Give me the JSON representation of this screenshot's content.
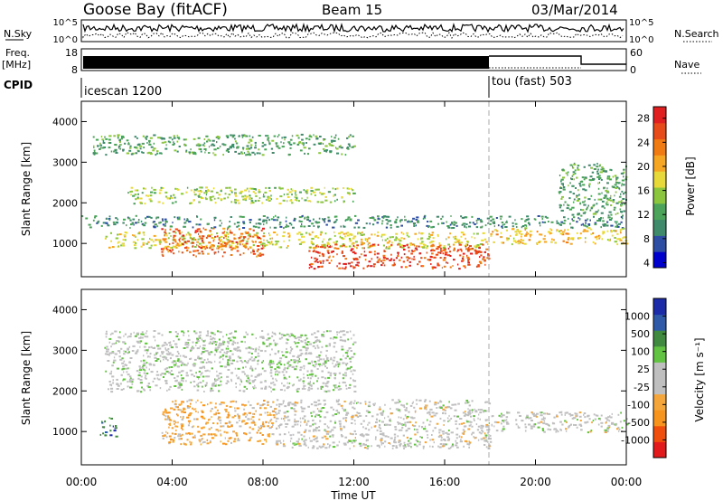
{
  "header": {
    "station": "Goose Bay (fitACF)",
    "beam": "Beam 15",
    "date": "03/Mar/2014"
  },
  "params": {
    "nsky_label": "N.Sky",
    "nsky_ticks": [
      "10^5",
      "10^0"
    ],
    "nsearch_label": "N.Search",
    "nsearch_ticks": [
      "10^5",
      "10^0"
    ],
    "freq_label_1": "Freq.",
    "freq_label_2": "[MHz]",
    "freq_ticks": [
      "18",
      "8"
    ],
    "nave_label": "Nave",
    "nave_ticks": [
      "60",
      "0"
    ],
    "cpid_label": "CPID",
    "cpid_segments": [
      {
        "name": "icescan 1200",
        "start_hour": 0
      },
      {
        "name": "tou (fast) 503",
        "start_hour": 18
      }
    ]
  },
  "colors": {
    "power_scale": [
      "#0000cc",
      "#2e4ea3",
      "#3f8a6b",
      "#4ca35a",
      "#8cc63f",
      "#e8d93a",
      "#f5a623",
      "#f07b13",
      "#e84b1a",
      "#e02020"
    ],
    "velocity_scale": [
      "#e31a1c",
      "#f04e0c",
      "#f7941d",
      "#f4a63a",
      "#bfbfbf",
      "#bfbfbf",
      "#62c241",
      "#3f8a3f",
      "#2e5aa8",
      "#1c2ba8"
    ]
  },
  "chart_data": [
    {
      "type": "heatmap",
      "panel": "power",
      "ylabel": "Slant Range [km]",
      "yticks": [
        "4000",
        "3000",
        "2000",
        "1000"
      ],
      "ylim": [
        180,
        4500
      ],
      "xlim_hours": [
        0,
        24
      ],
      "colorbar": {
        "label": "Power [dB]",
        "ticks": [
          "28",
          "24",
          "20",
          "16",
          "12",
          "8",
          "4"
        ],
        "range": [
          0,
          30
        ]
      },
      "echo_bands": [
        {
          "hours": [
            1,
            18
          ],
          "range_km": [
            900,
            1300
          ],
          "power_db": 16
        },
        {
          "hours": [
            3.5,
            8
          ],
          "range_km": [
            700,
            1400
          ],
          "power_db": 24
        },
        {
          "hours": [
            10,
            18
          ],
          "range_km": [
            400,
            1000
          ],
          "power_db": 26
        },
        {
          "hours": [
            0,
            24
          ],
          "range_km": [
            1400,
            1700
          ],
          "power_db": 8
        },
        {
          "hours": [
            2,
            12
          ],
          "range_km": [
            2000,
            2400
          ],
          "power_db": 14
        },
        {
          "hours": [
            0.5,
            12
          ],
          "range_km": [
            3200,
            3700
          ],
          "power_db": 10
        },
        {
          "hours": [
            18,
            24
          ],
          "range_km": [
            1000,
            1400
          ],
          "power_db": 18
        },
        {
          "hours": [
            21,
            24
          ],
          "range_km": [
            1700,
            3000
          ],
          "power_db": 10
        }
      ]
    },
    {
      "type": "heatmap",
      "panel": "velocity",
      "ylabel": "Slant Range [km]",
      "yticks": [
        "4000",
        "3000",
        "2000",
        "1000"
      ],
      "ylim": [
        180,
        4500
      ],
      "xlim_hours": [
        0,
        24
      ],
      "xlabel": "Time UT",
      "xticks": [
        "00:00",
        "04:00",
        "08:00",
        "12:00",
        "16:00",
        "20:00",
        "00:00"
      ],
      "colorbar": {
        "label": "Velocity [m s⁻¹]",
        "ticks": [
          "1000",
          "500",
          "100",
          "25",
          "-25",
          "-100",
          "-500",
          "-1000"
        ],
        "range": [
          -1000,
          1000
        ]
      },
      "echo_bands": [
        {
          "hours": [
            3.5,
            8.5
          ],
          "range_km": [
            700,
            1800
          ],
          "velocity_ms": -300
        },
        {
          "hours": [
            8.5,
            18
          ],
          "range_km": [
            600,
            1800
          ],
          "velocity_ms": 0
        },
        {
          "hours": [
            18,
            24
          ],
          "range_km": [
            1000,
            1500
          ],
          "velocity_ms": 0
        },
        {
          "hours": [
            0.8,
            1.5
          ],
          "range_km": [
            900,
            1400
          ],
          "velocity_ms": 600
        },
        {
          "hours": [
            1,
            12
          ],
          "range_km": [
            2000,
            3500
          ],
          "velocity_ms": 80
        }
      ]
    }
  ]
}
